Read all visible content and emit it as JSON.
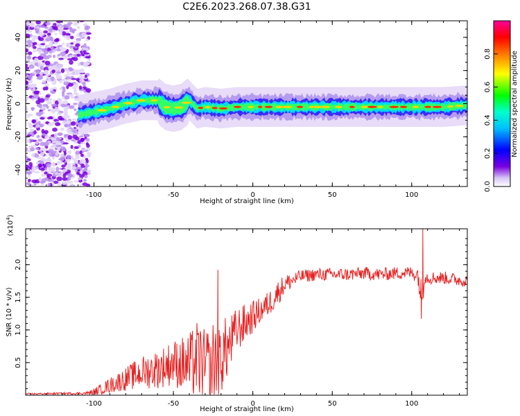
{
  "title": "C2E6.2023.268.07.38.G31",
  "chart_data": [
    {
      "type": "heatmap",
      "xlabel": "Height of straight line (km)",
      "ylabel": "Frequency (Hz)",
      "xlim": [
        -143,
        135
      ],
      "ylim": [
        -50,
        50
      ],
      "xticks": [
        -100,
        -50,
        0,
        50,
        100
      ],
      "yticks": [
        -40,
        -20,
        0,
        20,
        40
      ],
      "colorbar": {
        "label": "Normalized spectral amplitude",
        "range": [
          0,
          1
        ],
        "ticks": [
          "0.0",
          "0.2",
          "0.4",
          "0.6",
          "0.8"
        ],
        "colors": [
          "#ffffff",
          "#7a00e0",
          "#0000ff",
          "#00e5ff",
          "#00ff00",
          "#ffff00",
          "#ff6600",
          "#ff0000",
          "#ff0099"
        ]
      },
      "ridge": {
        "x": [
          -110,
          -100,
          -90,
          -80,
          -70,
          -60,
          -55,
          -50,
          -45,
          -40,
          -35,
          -30,
          -20,
          -10,
          0,
          20,
          40,
          60,
          80,
          100,
          120,
          135
        ],
        "y": [
          -7,
          -5,
          -3,
          0,
          2,
          2,
          -2,
          -3,
          -2,
          2,
          -3,
          -2,
          -3,
          -2,
          -2,
          -2,
          -2,
          -2,
          -2,
          -2,
          -2,
          -1
        ]
      },
      "noise_region_x": [
        -143,
        -100
      ]
    },
    {
      "type": "line",
      "xlabel": "Height of straight line (km)",
      "ylabel": "SNR (10 * v/v)",
      "y_multiplier_label": "(x10",
      "y_multiplier_exp": "4",
      "y_multiplier_close": ")",
      "xlim": [
        -143,
        135
      ],
      "ylim": [
        0,
        2.55
      ],
      "xticks": [
        -100,
        -50,
        0,
        50,
        100
      ],
      "yticks": [
        0.5,
        1.0,
        1.5,
        2.0
      ],
      "series": [
        {
          "color": "#e82020",
          "x": [
            -143,
            -105,
            -100,
            -90,
            -80,
            -70,
            -60,
            -50,
            -40,
            -35,
            -30,
            -25,
            -20,
            -15,
            -10,
            -5,
            0,
            5,
            10,
            15,
            20,
            30,
            40,
            50,
            60,
            70,
            80,
            90,
            100,
            104,
            106,
            107,
            108,
            110,
            120,
            135
          ],
          "y": [
            0.02,
            0.03,
            0.05,
            0.15,
            0.25,
            0.35,
            0.4,
            0.5,
            0.45,
            0.55,
            0.4,
            0.5,
            0.6,
            0.75,
            1.0,
            1.1,
            1.2,
            1.3,
            1.4,
            1.55,
            1.7,
            1.82,
            1.85,
            1.85,
            1.85,
            1.87,
            1.85,
            1.87,
            1.88,
            1.85,
            1.5,
            1.7,
            1.85,
            1.8,
            1.8,
            1.75
          ],
          "noise": [
            0.01,
            0.02,
            0.05,
            0.12,
            0.18,
            0.25,
            0.3,
            0.35,
            0.5,
            0.6,
            0.6,
            0.65,
            0.6,
            0.45,
            0.35,
            0.3,
            0.25,
            0.2,
            0.2,
            0.2,
            0.15,
            0.1,
            0.1,
            0.1,
            0.1,
            0.1,
            0.1,
            0.1,
            0.1,
            0.15,
            0.3,
            0.3,
            0.15,
            0.1,
            0.1,
            0.1
          ]
        }
      ],
      "annotations": [
        {
          "x": -22,
          "y": 1.92
        },
        {
          "x": 107,
          "y": 2.55
        },
        {
          "x": 106,
          "y": 1.17
        }
      ]
    }
  ]
}
